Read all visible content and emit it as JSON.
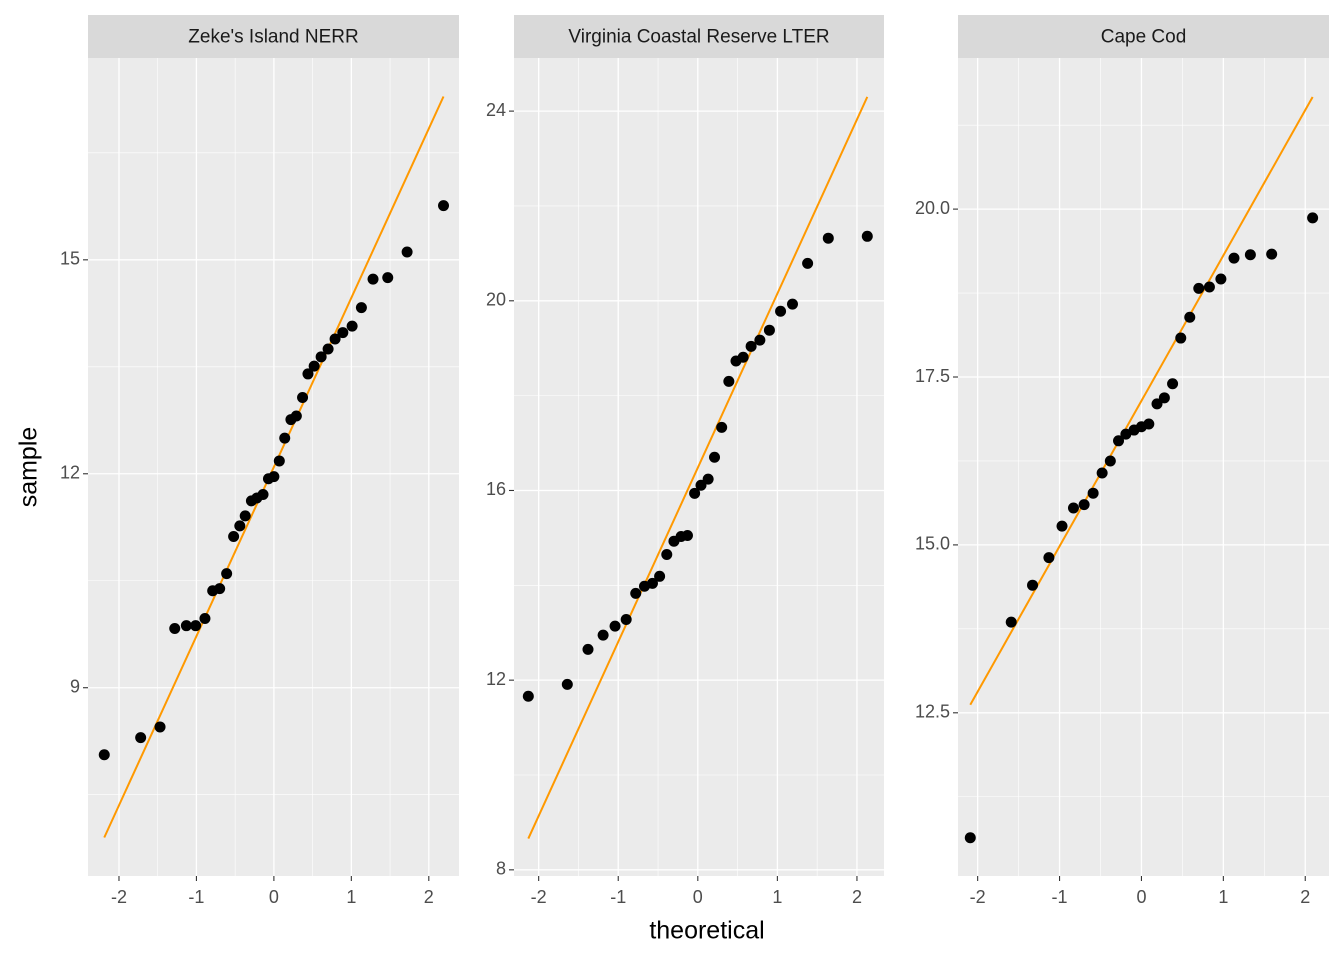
{
  "x_label": "theoretical",
  "y_label": "sample",
  "chart_data": [
    {
      "type": "scatter",
      "title": "Zeke's Island NERR",
      "color": "#000000",
      "grid": true,
      "x": [
        -2.19,
        -1.72,
        -1.47,
        -1.28,
        -1.13,
        -1.01,
        -0.89,
        -0.79,
        -0.7,
        -0.61,
        -0.52,
        -0.44,
        -0.37,
        -0.29,
        -0.22,
        -0.14,
        -0.07,
        0,
        0.07,
        0.14,
        0.22,
        0.29,
        0.37,
        0.44,
        0.52,
        0.61,
        0.7,
        0.79,
        0.89,
        1.01,
        1.13,
        1.28,
        1.47,
        1.72,
        2.19
      ],
      "values": [
        8.06,
        8.3,
        8.45,
        9.83,
        9.87,
        9.87,
        9.97,
        10.36,
        10.39,
        10.6,
        11.12,
        11.27,
        11.41,
        11.62,
        11.66,
        11.71,
        11.93,
        11.96,
        12.18,
        12.5,
        12.76,
        12.81,
        13.07,
        13.4,
        13.51,
        13.64,
        13.75,
        13.89,
        13.98,
        14.07,
        14.33,
        14.73,
        14.75,
        15.11,
        15.76
      ],
      "line": {
        "x": [
          -2.19,
          2.19
        ],
        "values": [
          6.9,
          17.29
        ],
        "color": "#FF9900"
      },
      "xlim": [
        -2.4,
        2.39
      ],
      "xticks": [
        -2,
        -1,
        0,
        1,
        2
      ],
      "ylim": [
        6.36,
        17.83
      ],
      "yticks": [
        9,
        12,
        15
      ]
    },
    {
      "type": "scatter",
      "title": "Virginia Coastal Reserve LTER",
      "color": "#000000",
      "grid": true,
      "x": [
        -2.13,
        -1.64,
        -1.38,
        -1.19,
        -1.04,
        -0.9,
        -0.78,
        -0.67,
        -0.57,
        -0.48,
        -0.39,
        -0.3,
        -0.21,
        -0.13,
        -0.04,
        0.04,
        0.13,
        0.21,
        0.3,
        0.39,
        0.48,
        0.57,
        0.67,
        0.78,
        0.9,
        1.04,
        1.19,
        1.38,
        1.64,
        2.13
      ],
      "values": [
        11.66,
        11.91,
        12.65,
        12.95,
        13.14,
        13.28,
        13.83,
        13.98,
        14.04,
        14.19,
        14.65,
        14.93,
        15.03,
        15.05,
        15.94,
        16.11,
        16.24,
        16.7,
        17.33,
        18.3,
        18.73,
        18.81,
        19.04,
        19.17,
        19.38,
        19.78,
        19.93,
        20.79,
        21.32,
        21.36
      ],
      "line": {
        "x": [
          -2.13,
          2.13
        ],
        "values": [
          8.66,
          24.3
        ],
        "color": "#FF9900"
      },
      "xlim": [
        -2.31,
        2.34
      ],
      "xticks": [
        -2,
        -1,
        0,
        1,
        2
      ],
      "ylim": [
        7.87,
        25.12
      ],
      "yticks": [
        8,
        12,
        16,
        20,
        24
      ]
    },
    {
      "type": "scatter",
      "title": "Cape Cod",
      "color": "#000000",
      "grid": true,
      "x": [
        -2.09,
        -1.59,
        -1.33,
        -1.13,
        -0.97,
        -0.83,
        -0.7,
        -0.59,
        -0.48,
        -0.38,
        -0.28,
        -0.19,
        -0.09,
        0,
        0.09,
        0.19,
        0.28,
        0.38,
        0.48,
        0.59,
        0.7,
        0.83,
        0.97,
        1.13,
        1.33,
        1.59,
        2.09
      ],
      "values": [
        10.64,
        13.85,
        14.4,
        14.81,
        15.28,
        15.55,
        15.6,
        15.77,
        16.07,
        16.25,
        16.55,
        16.65,
        16.71,
        16.76,
        16.8,
        17.1,
        17.19,
        17.4,
        18.08,
        18.39,
        18.82,
        18.84,
        18.96,
        19.27,
        19.32,
        19.33,
        19.87
      ],
      "line": {
        "x": [
          -2.09,
          2.09
        ],
        "values": [
          12.62,
          21.67
        ],
        "color": "#FF9900"
      },
      "xlim": [
        -2.24,
        2.29
      ],
      "xticks": [
        -2,
        -1,
        0,
        1,
        2
      ],
      "ylim": [
        10.07,
        22.25
      ],
      "yticks": [
        {
          "value": 12.5,
          "label": "12.5"
        },
        {
          "value": 15,
          "label": "15.0"
        },
        {
          "value": 17.5,
          "label": "17.5"
        },
        {
          "value": 20,
          "label": "20.0"
        }
      ]
    }
  ]
}
